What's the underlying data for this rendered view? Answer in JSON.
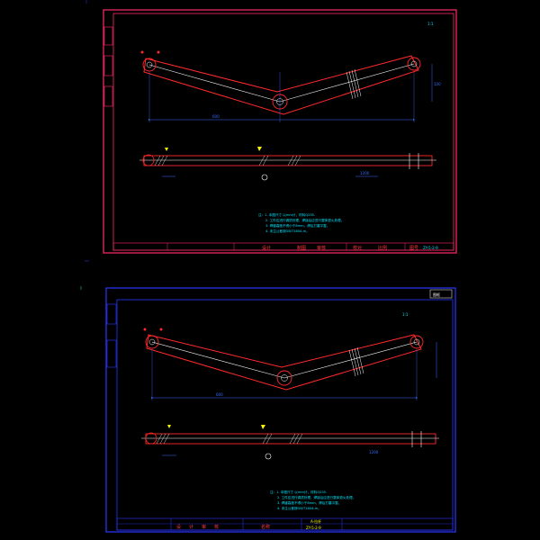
{
  "colors": {
    "background": "#000000",
    "sheet1_frame": "#ff2a6a",
    "sheet2_frame": "#2a36ff",
    "part_outline": "#ff2a2a",
    "center_line": "#ffffff",
    "dimension": "#3a6bff",
    "annotation": "#00e5ff",
    "marker": "#ffff00",
    "title_text": "#ff3a3a"
  },
  "sheet1": {
    "view_scale_note": "1:1",
    "dim_span": "600",
    "dim_height": "100",
    "dim_lower": "1200",
    "notes": [
      "注：1. 本图尺寸 以mm计，材料Q235.",
      "2. 工件应进行调质处理，焊接后应进行整体退火处理。",
      "3. 焊缝高度不得小于8mm，焊后打磨平整。",
      "4. 未注公差按GB/T1804-m。"
    ],
    "title_block": {
      "cells": [
        "设计",
        "制图",
        "审核",
        "校对",
        "比例",
        "图号"
      ],
      "drawing_number": "ZY-5-2-9"
    }
  },
  "sheet2": {
    "view_scale_note": "1:1",
    "stamp": "图框",
    "dim_span": "600",
    "dim_lower": "1200",
    "notes": [
      "注：1. 本图尺寸 以mm计，材料Q235.",
      "2. 工件应进行调质处理，焊接后应进行整体退火处理。",
      "3. 焊缝高度不得小于8mm，焊后打磨平整。",
      "4. 未注公差按GB/T1804-m。"
    ],
    "title_block": {
      "cells": [
        "设",
        "计",
        "审",
        "核",
        "名称"
      ],
      "part_name": "A-拉杆",
      "drawing_number": "ZY-5-2-9"
    }
  }
}
